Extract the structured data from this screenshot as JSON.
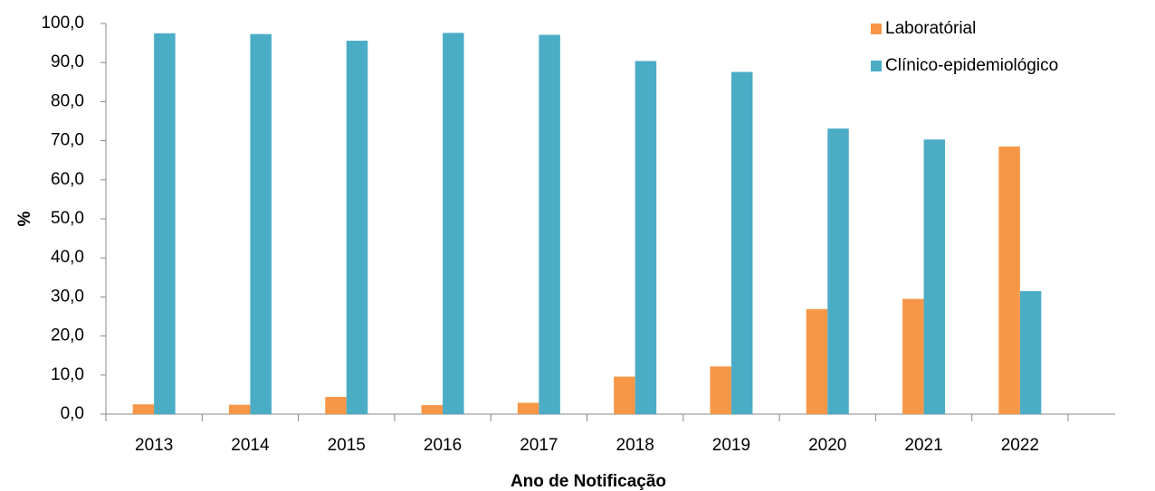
{
  "chart_data": {
    "type": "bar",
    "categories": [
      "2013",
      "2014",
      "2015",
      "2016",
      "2017",
      "2018",
      "2019",
      "2020",
      "2021",
      "2022"
    ],
    "series": [
      {
        "name": "Laboratórial",
        "color": "#f79646",
        "values": [
          2.5,
          2.4,
          4.4,
          2.3,
          2.9,
          9.6,
          12.2,
          26.9,
          29.5,
          68.5
        ]
      },
      {
        "name": "Clínico-epidemiológico",
        "color": "#4bacc6",
        "values": [
          97.5,
          97.3,
          95.6,
          97.6,
          97.1,
          90.4,
          87.6,
          73.1,
          70.3,
          31.5
        ]
      }
    ],
    "ylim": [
      0,
      100
    ],
    "yticks": [
      {
        "value": 0,
        "label": "0,0"
      },
      {
        "value": 10,
        "label": "10,0"
      },
      {
        "value": 20,
        "label": "20,0"
      },
      {
        "value": 30,
        "label": "30,0"
      },
      {
        "value": 40,
        "label": "40,0"
      },
      {
        "value": 50,
        "label": "50,0"
      },
      {
        "value": 60,
        "label": "60,0"
      },
      {
        "value": 70,
        "label": "70,0"
      },
      {
        "value": 80,
        "label": "80,0"
      },
      {
        "value": 90,
        "label": "90,0"
      },
      {
        "value": 100,
        "label": "100,0"
      }
    ],
    "y_label": "%",
    "x_label": "Ano de Notificação",
    "legend": "top-right",
    "grid": false
  }
}
